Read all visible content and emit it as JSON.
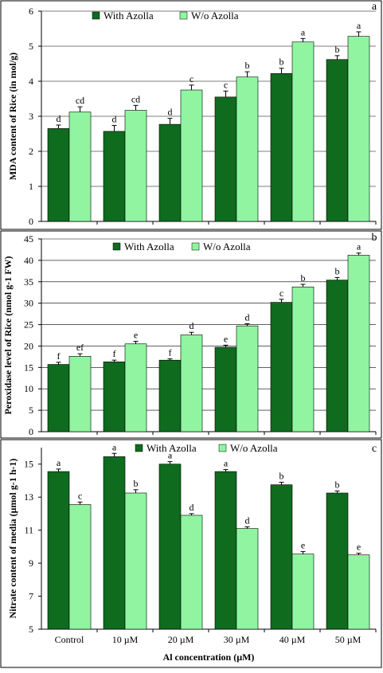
{
  "colors": {
    "with_azolla": "#0f6b1e",
    "wo_azolla": "#90f4a0",
    "border": "#000000",
    "background": "#ffffff"
  },
  "chart_data": [
    {
      "type": "bar",
      "panel_label": "a",
      "categories": [
        "Control",
        "10 µM",
        "20 µM",
        "30 µM",
        "40 µM",
        "50 µM"
      ],
      "series": [
        {
          "name": "With Azolla",
          "values": [
            2.65,
            2.57,
            2.77,
            3.55,
            4.22,
            4.62
          ],
          "errors": [
            0.1,
            0.17,
            0.17,
            0.17,
            0.15,
            0.11
          ],
          "sig": [
            "d",
            "d",
            "d",
            "c",
            "b",
            "b"
          ]
        },
        {
          "name": "W/o Azolla",
          "values": [
            3.12,
            3.17,
            3.75,
            4.12,
            5.12,
            5.28
          ],
          "errors": [
            0.15,
            0.14,
            0.14,
            0.15,
            0.1,
            0.13
          ],
          "sig": [
            "cd",
            "cd",
            "c",
            "b",
            "a",
            "a"
          ]
        }
      ],
      "ylabel": "MDA content of Rice (in mol/g)",
      "xlabel": "",
      "ylim": [
        0,
        6
      ],
      "yticks": [
        "0",
        "1",
        "2",
        "3",
        "4",
        "5",
        "6"
      ],
      "grid": true,
      "legend_position": "top-left",
      "show_category_labels": false
    },
    {
      "type": "bar",
      "panel_label": "b",
      "categories": [
        "Control",
        "10 µM",
        "20 µM",
        "30 µM",
        "40 µM",
        "50 µM"
      ],
      "series": [
        {
          "name": "With Azolla",
          "values": [
            15.7,
            16.3,
            16.7,
            19.7,
            30.2,
            35.4
          ],
          "errors": [
            0.5,
            0.4,
            0.3,
            0.5,
            0.7,
            0.6
          ],
          "sig": [
            "f",
            "f",
            "f",
            "e",
            "c",
            "b"
          ]
        },
        {
          "name": "W/o Azolla",
          "values": [
            17.6,
            20.5,
            22.6,
            24.7,
            33.8,
            41.2
          ],
          "errors": [
            0.6,
            0.6,
            0.6,
            0.5,
            0.6,
            0.5
          ],
          "sig": [
            "ef",
            "e",
            "d",
            "d",
            "b",
            "a"
          ]
        }
      ],
      "ylabel": "Peroxidase level of Rice (nmol g-1 FW)",
      "xlabel": "",
      "ylim": [
        0,
        45
      ],
      "yticks": [
        "0",
        "5",
        "10",
        "15",
        "20",
        "25",
        "30",
        "35",
        "40",
        "45"
      ],
      "grid": true,
      "legend_position": "top-left",
      "show_category_labels": false
    },
    {
      "type": "bar",
      "panel_label": "c",
      "categories": [
        "Control",
        "10 µM",
        "20 µM",
        "30 µM",
        "40 µM",
        "50 µM"
      ],
      "series": [
        {
          "name": "With Azolla",
          "values": [
            14.55,
            15.45,
            15.0,
            14.55,
            13.75,
            13.25
          ],
          "errors": [
            0.15,
            0.2,
            0.15,
            0.12,
            0.15,
            0.12
          ],
          "sig": [
            "a",
            "a",
            "a",
            "a",
            "b",
            "b"
          ]
        },
        {
          "name": "W/o Azolla",
          "values": [
            12.55,
            13.25,
            11.9,
            11.1,
            9.55,
            9.5
          ],
          "errors": [
            0.15,
            0.2,
            0.1,
            0.1,
            0.15,
            0.1
          ],
          "sig": [
            "c",
            "b",
            "d",
            "d",
            "e",
            "e"
          ]
        }
      ],
      "ylabel": "Nitrate content of media (µmol g-1 h-1)",
      "xlabel": "Al concentration (µM)",
      "ylim": [
        5,
        16
      ],
      "yticks": [
        "5",
        "7",
        "9",
        "11",
        "13",
        "15"
      ],
      "grid": false,
      "legend_position": "top-center",
      "show_category_labels": true
    }
  ]
}
